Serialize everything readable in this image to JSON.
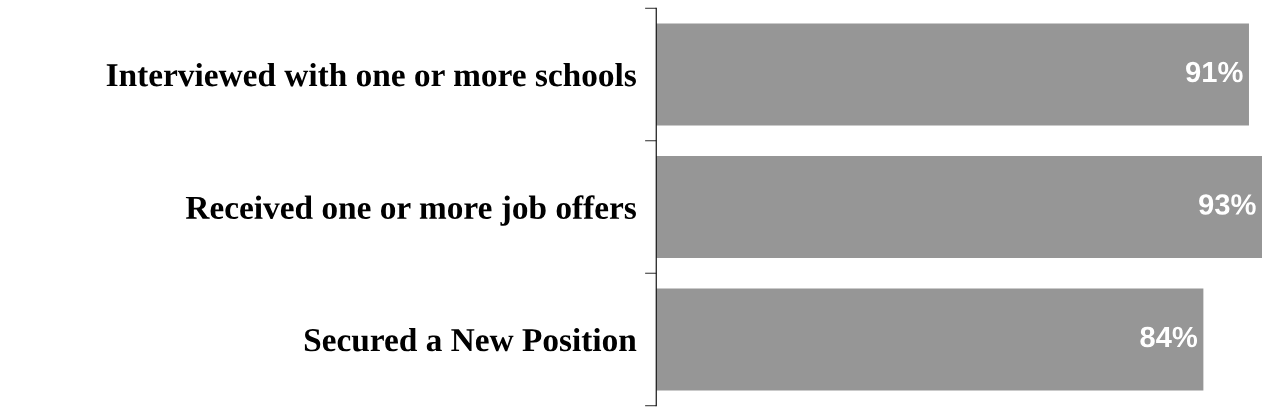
{
  "chart_data": {
    "type": "bar",
    "orientation": "horizontal",
    "categories": [
      "Interviewed with one or more schools",
      "Received one or more job offers",
      "Secured a New Position"
    ],
    "values": [
      91,
      93,
      84
    ],
    "color": "#969696",
    "data_labels": true,
    "value_labels": [
      "91%",
      "93%",
      "84%"
    ],
    "tick_labels": "y"
  }
}
